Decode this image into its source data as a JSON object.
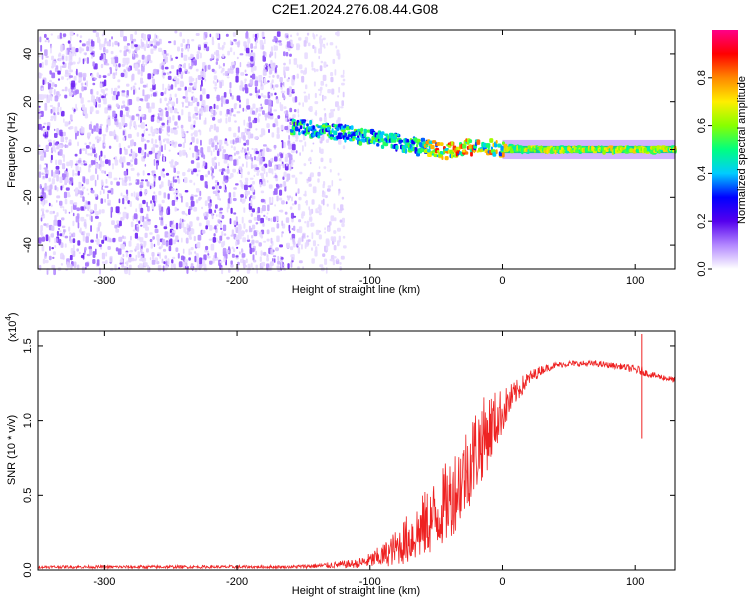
{
  "figure": {
    "title": "C2E1.2024.276.08.44.G08"
  },
  "colors": {
    "snr_line": "#ee2222",
    "background": "#ffffff",
    "axes": "#000000"
  },
  "chart_data": [
    {
      "type": "heatmap",
      "xlabel": "Height of straight line (km)",
      "ylabel": "Frequency (Hz)",
      "xlim": [
        -350,
        130
      ],
      "ylim": [
        -50,
        50
      ],
      "x_ticks": [
        -300,
        -200,
        -100,
        0,
        100
      ],
      "x_tick_labels": [
        "-300",
        "-200",
        "-100",
        "0",
        "100"
      ],
      "y_ticks": [
        -40,
        -20,
        0,
        20,
        40
      ],
      "y_tick_labels": [
        "-40",
        "-20",
        "0",
        "20",
        "40"
      ],
      "colorbar": {
        "label": "Normalized spectral amplitude",
        "range": [
          0,
          1
        ],
        "ticks": [
          0,
          0.2,
          0.4,
          0.6,
          0.8
        ],
        "tick_labels": [
          "0.0",
          "0.2",
          "0.4",
          "0.6",
          "0.8"
        ],
        "colormap": [
          "#ffffff",
          "#b388ff",
          "#5500ee",
          "#0000ff",
          "#00ccff",
          "#00ff80",
          "#88ff00",
          "#ffee00",
          "#ff8800",
          "#ff0000",
          "#ff0088"
        ]
      },
      "regions": [
        {
          "x_range": [
            -350,
            -155
          ],
          "freq_range": [
            -50,
            50
          ],
          "amplitude": 0.15,
          "pattern": "noise"
        },
        {
          "x_range": [
            -155,
            -120
          ],
          "freq_range": [
            -50,
            50
          ],
          "amplitude": 0.05,
          "pattern": "sparse noise"
        },
        {
          "x_range": [
            -160,
            130
          ],
          "freq_range": [
            -5,
            5
          ],
          "amplitude": 0.5,
          "pattern": "signal band"
        }
      ],
      "signal_centerline": [
        {
          "x": -160,
          "freq": 10
        },
        {
          "x": -140,
          "freq": 8
        },
        {
          "x": -120,
          "freq": 7
        },
        {
          "x": -100,
          "freq": 5
        },
        {
          "x": -80,
          "freq": 3
        },
        {
          "x": -60,
          "freq": 1
        },
        {
          "x": -45,
          "freq": -1
        },
        {
          "x": -30,
          "freq": 1
        },
        {
          "x": -10,
          "freq": 1
        },
        {
          "x": 20,
          "freq": 0
        },
        {
          "x": 130,
          "freq": 0
        }
      ]
    },
    {
      "type": "line",
      "xlabel": "Height of straight line (km)",
      "ylabel": "SNR (10 * v/v)",
      "y_scale_label": "(x10",
      "y_scale_exponent": "4",
      "y_scale_suffix": ")",
      "xlim": [
        -350,
        130
      ],
      "ylim": [
        0,
        1.6
      ],
      "x_ticks": [
        -300,
        -200,
        -100,
        0,
        100
      ],
      "x_tick_labels": [
        "-300",
        "-200",
        "-100",
        "0",
        "100"
      ],
      "y_ticks": [
        0,
        0.5,
        1.0,
        1.5
      ],
      "y_tick_labels": [
        "0.0",
        "0.5",
        "1.0",
        "1.5"
      ],
      "series": [
        {
          "x": [
            -350,
            -300,
            -250,
            -200,
            -160,
            -130,
            -110,
            -100,
            -90,
            -80,
            -70,
            -60,
            -50,
            -40,
            -30,
            -20,
            -10,
            0,
            10,
            20,
            30,
            40,
            50,
            60,
            70,
            80,
            90,
            100,
            105,
            110,
            120,
            130
          ],
          "y": [
            0.02,
            0.02,
            0.02,
            0.02,
            0.02,
            0.03,
            0.04,
            0.06,
            0.09,
            0.14,
            0.2,
            0.27,
            0.35,
            0.45,
            0.6,
            0.78,
            0.92,
            1.05,
            1.18,
            1.28,
            1.34,
            1.37,
            1.38,
            1.38,
            1.38,
            1.37,
            1.36,
            1.34,
            1.33,
            1.31,
            1.29,
            1.27
          ],
          "spread": [
            0.01,
            0.01,
            0.01,
            0.01,
            0.01,
            0.02,
            0.03,
            0.05,
            0.08,
            0.12,
            0.18,
            0.22,
            0.25,
            0.28,
            0.3,
            0.3,
            0.25,
            0.15,
            0.08,
            0.05,
            0.03,
            0.02,
            0.02,
            0.02,
            0.02,
            0.02,
            0.02,
            0.03,
            0.03,
            0.02,
            0.02,
            0.02
          ]
        }
      ],
      "annotations": [
        {
          "x": 105,
          "y_low": 0.88,
          "y_high": 1.58,
          "note": "spike"
        }
      ]
    }
  ]
}
